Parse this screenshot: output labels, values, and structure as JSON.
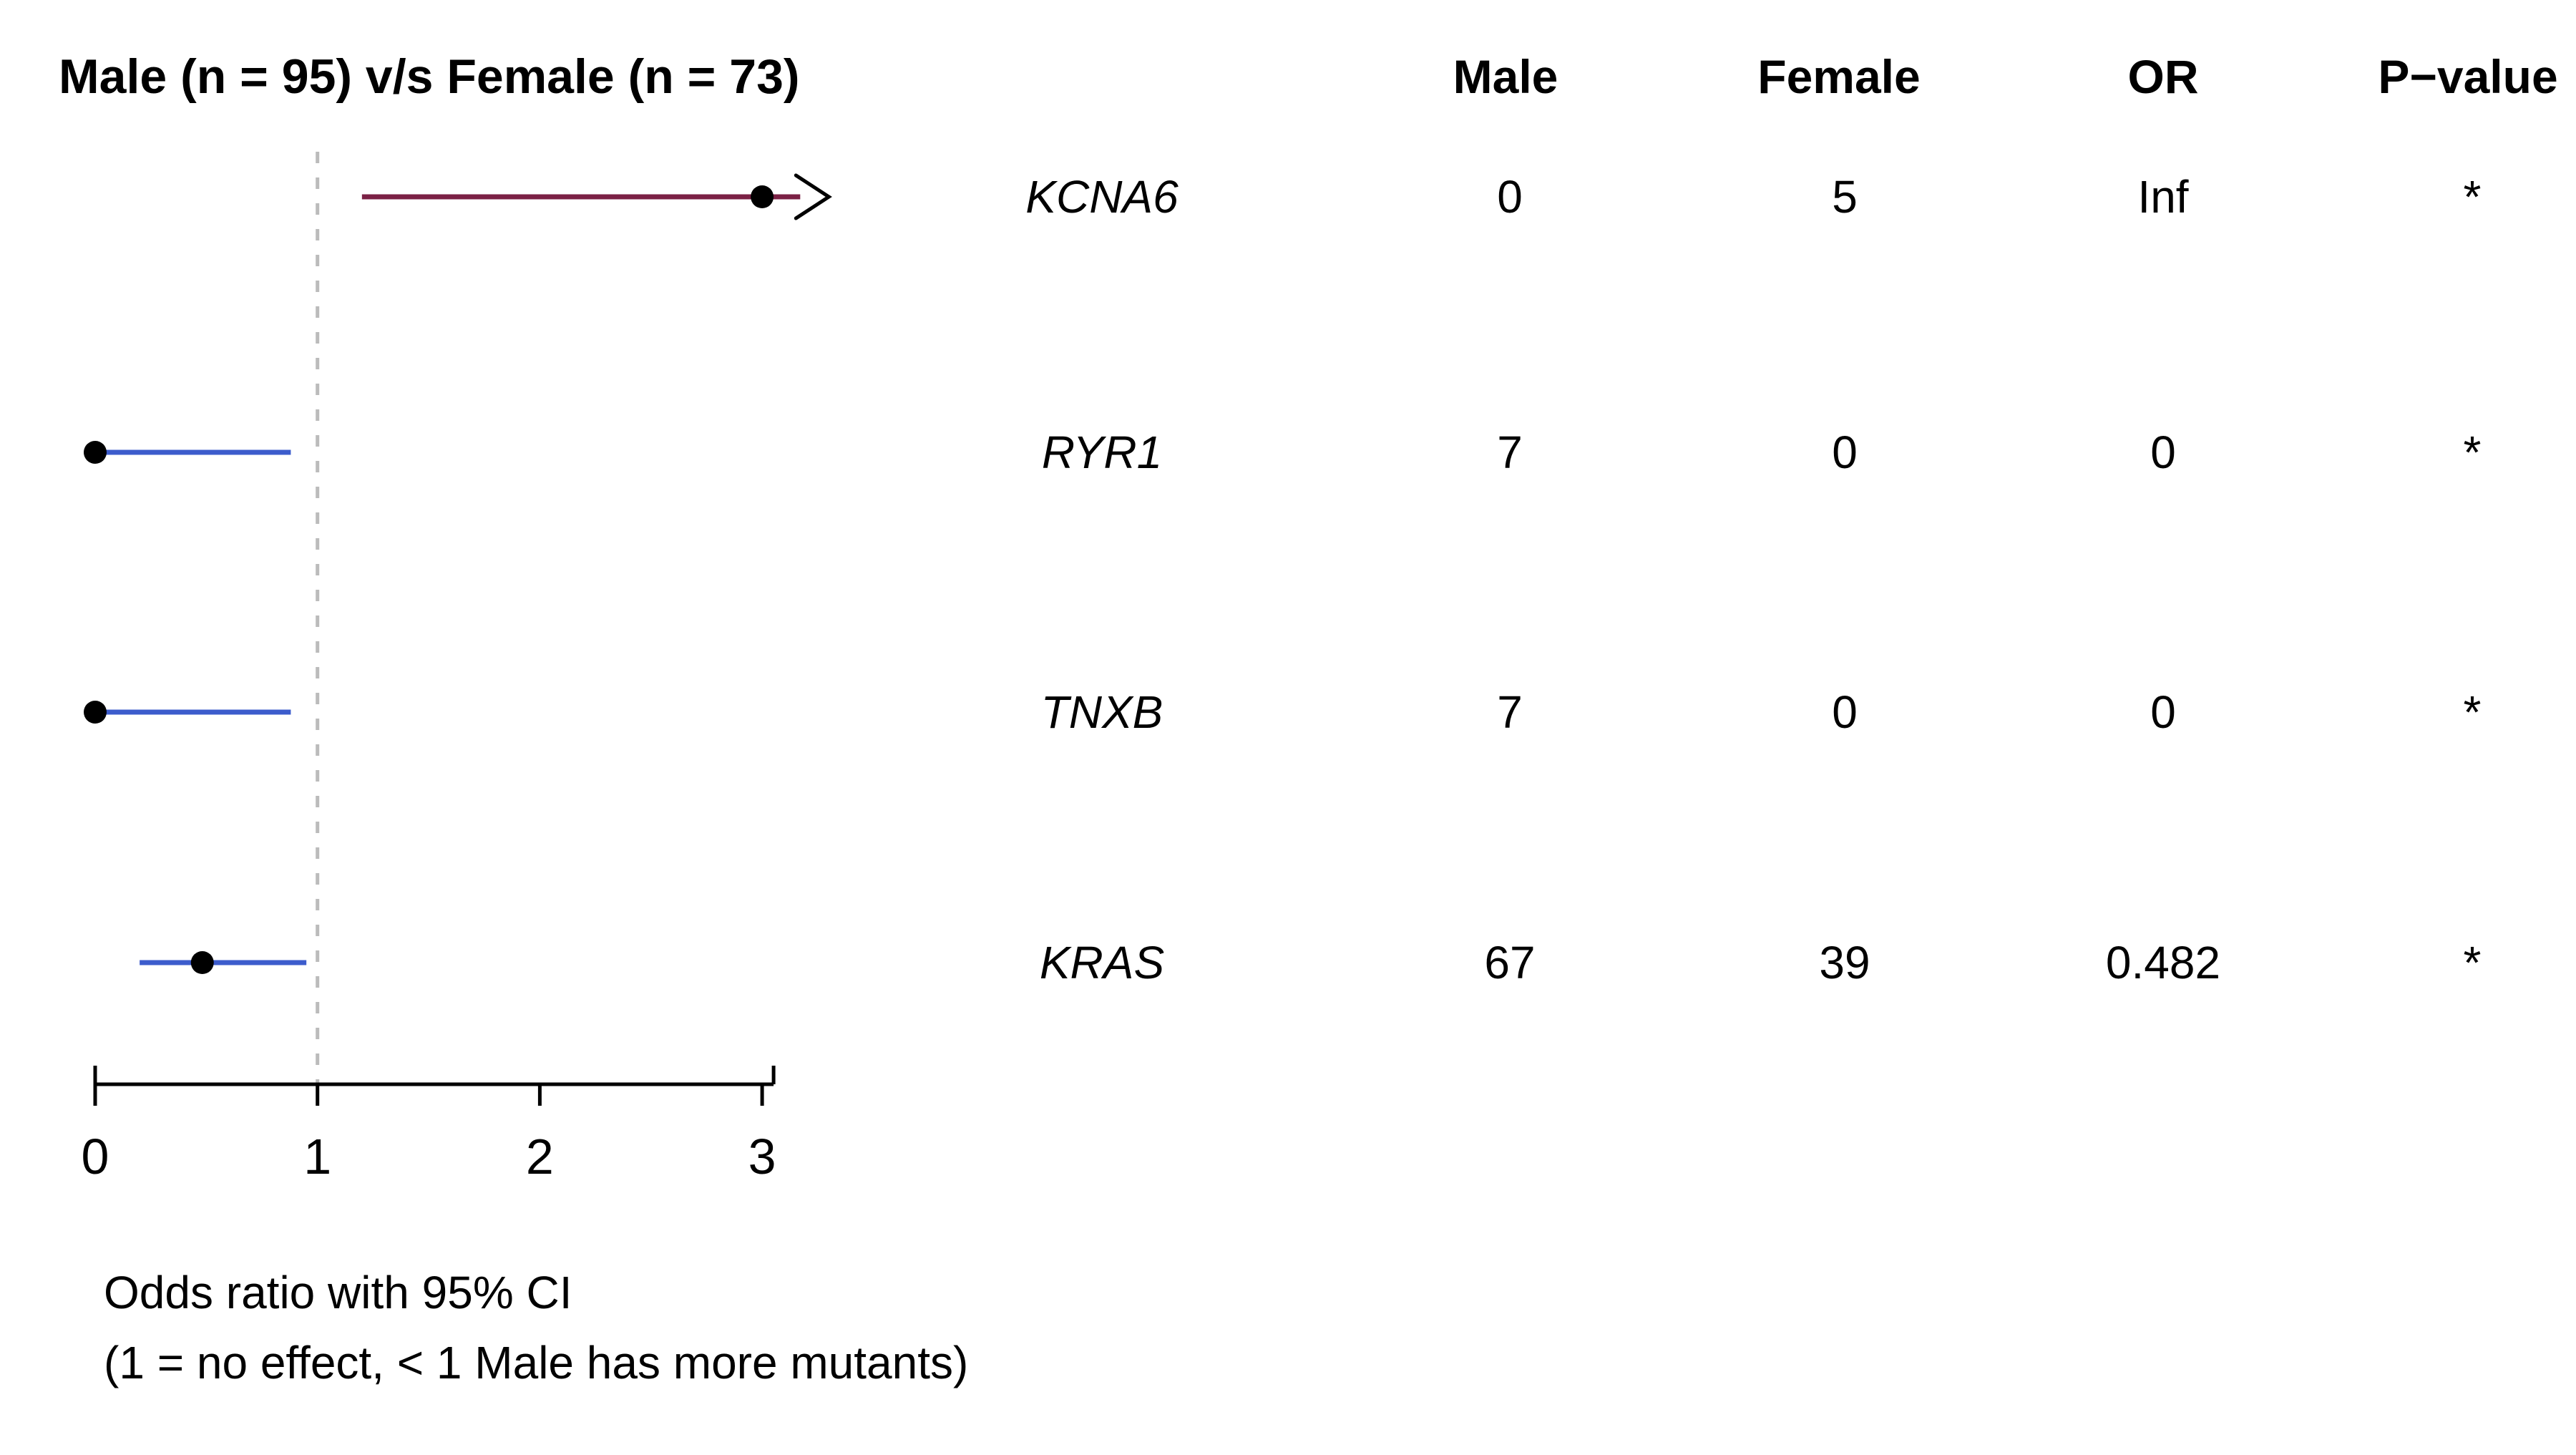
{
  "chart_data": {
    "type": "forest",
    "title": "Male (n = 95) v/s Female (n = 73)",
    "caption": [
      "Odds ratio with 95% CI",
      "(1 = no effect, < 1 Male has more mutants)"
    ],
    "table_headers": [
      "Male",
      "Female",
      "OR",
      "P−value"
    ],
    "x_ticks": [
      0,
      1,
      2,
      3
    ],
    "xlim": [
      0,
      3.3
    ],
    "reference_line": 1,
    "grid": false,
    "colors": {
      "ci_female_more": "#7b2145",
      "ci_male_more": "#3c5ccc",
      "point": "#000000",
      "reference_line": "#bbbbbb",
      "axis": "#000000",
      "arrow": "#000000"
    },
    "rows": [
      {
        "gene": "KCNA6",
        "male": "0",
        "female": "5",
        "or": "Inf",
        "p": "*",
        "point": 3.0,
        "ci_low": 1.2,
        "ci_high": 3.3,
        "arrow_high": true,
        "color_key": "ci_female_more"
      },
      {
        "gene": "RYR1",
        "male": "7",
        "female": "0",
        "or": "0",
        "p": "*",
        "point": 0,
        "ci_low": 0,
        "ci_high": 0.88,
        "arrow_high": false,
        "color_key": "ci_male_more"
      },
      {
        "gene": "TNXB",
        "male": "7",
        "female": "0",
        "or": "0",
        "p": "*",
        "point": 0,
        "ci_low": 0,
        "ci_high": 0.88,
        "arrow_high": false,
        "color_key": "ci_male_more"
      },
      {
        "gene": "KRAS",
        "male": "67",
        "female": "39",
        "or": "0.482",
        "p": "*",
        "point": 0.482,
        "ci_low": 0.2,
        "ci_high": 0.95,
        "arrow_high": false,
        "color_key": "ci_male_more"
      }
    ]
  }
}
